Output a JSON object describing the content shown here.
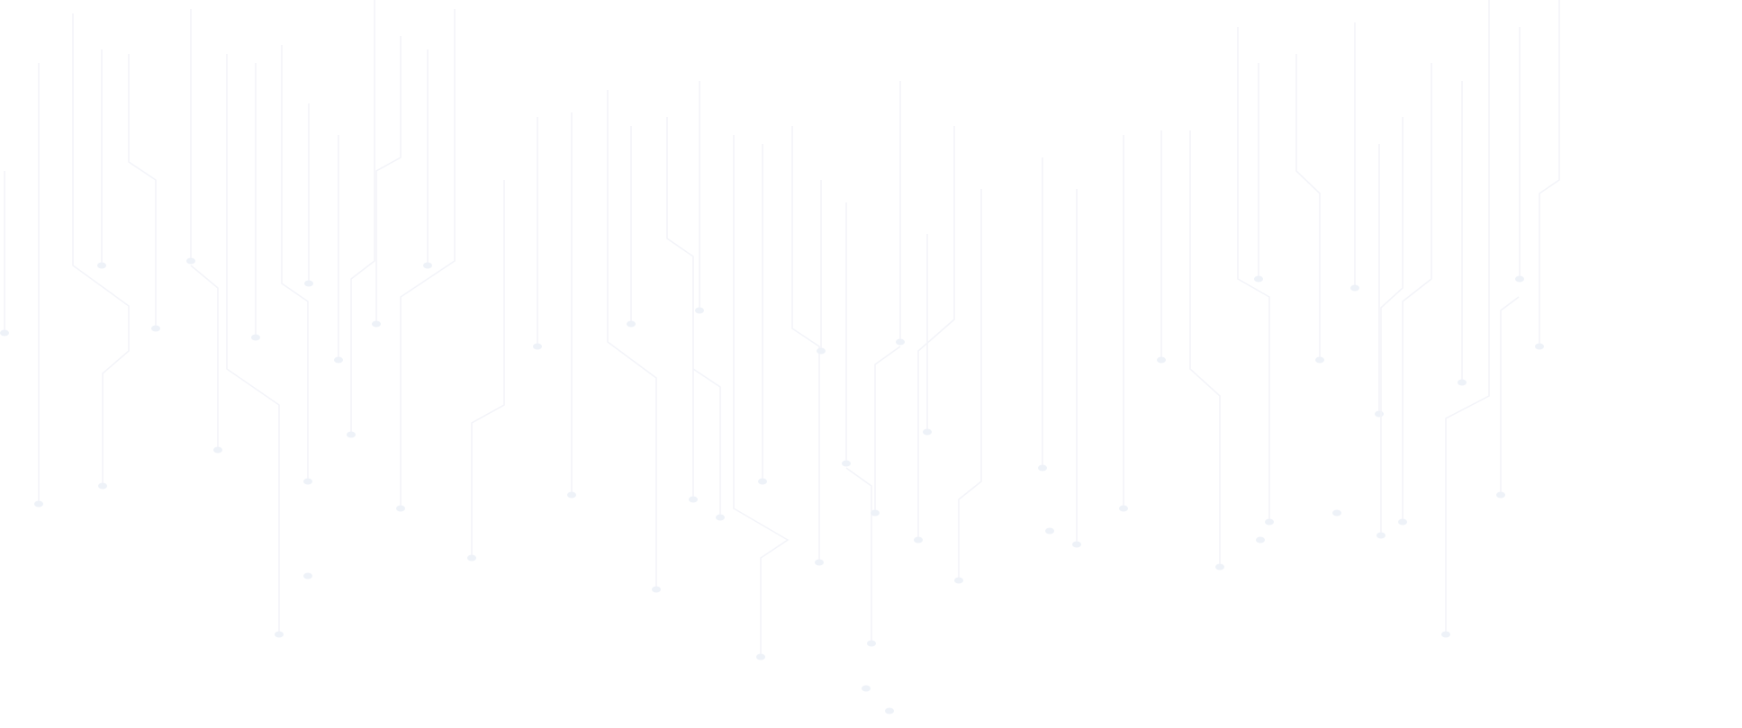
{
  "background": {
    "pattern": "circuit-traces",
    "colors": {
      "background": "#ffffff",
      "trace": "#f3f4f9",
      "node": "#eef2f8"
    }
  }
}
